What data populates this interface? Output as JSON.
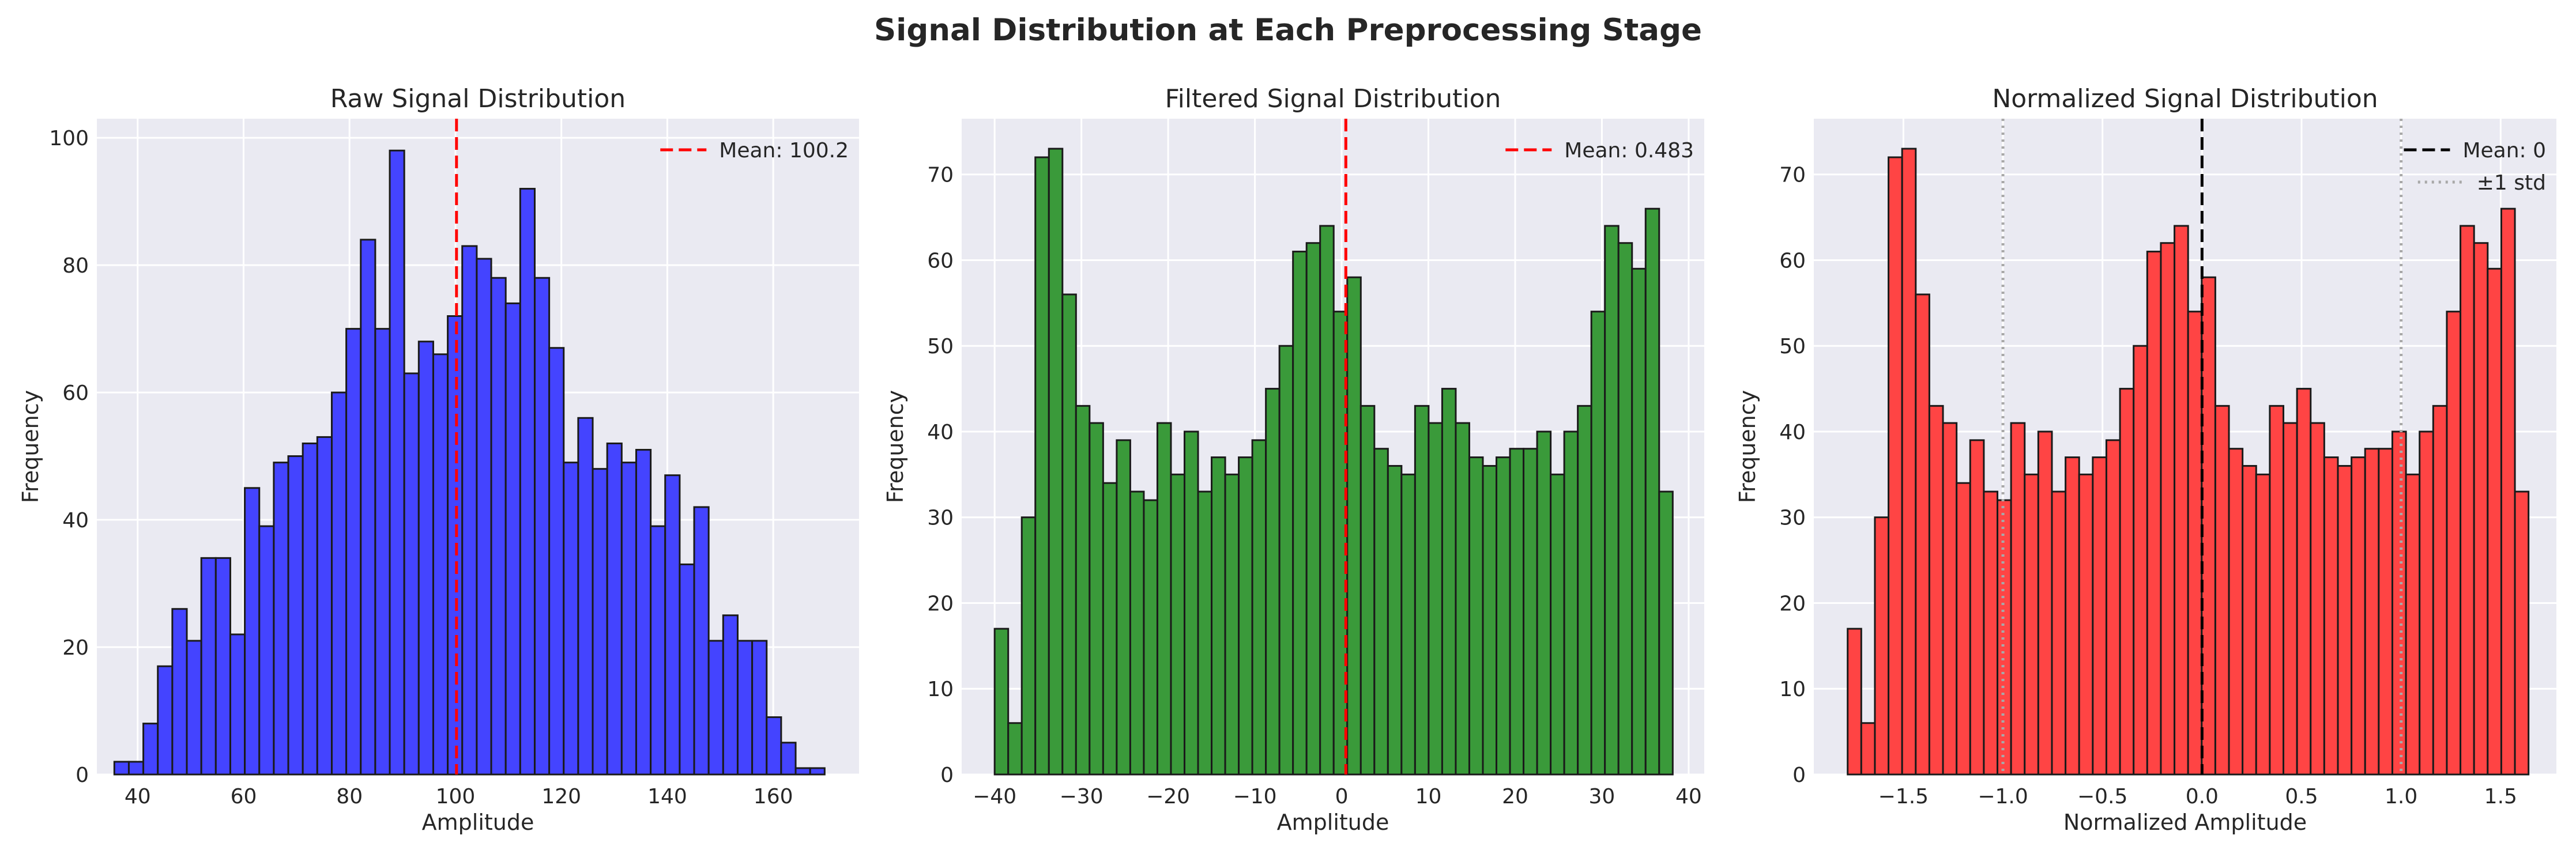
{
  "figure": {
    "title": "Signal Distribution at Each Preprocessing Stage"
  },
  "chart_data": [
    {
      "type": "bar",
      "title": "Raw Signal Distribution",
      "xlabel": "Amplitude",
      "ylabel": "Frequency",
      "xlim": [
        32.3,
        176.2
      ],
      "ylim": [
        0,
        103
      ],
      "xticks": [
        40,
        60,
        80,
        100,
        120,
        140,
        160
      ],
      "yticks": [
        0,
        20,
        40,
        60,
        80,
        100
      ],
      "xtick_decimals": 0,
      "bar_color": "#4444ff",
      "bin_start": 35.6,
      "bin_width": 2.7368,
      "values": [
        2,
        2,
        8,
        17,
        26,
        21,
        34,
        34,
        22,
        45,
        39,
        49,
        50,
        52,
        53,
        60,
        70,
        84,
        70,
        98,
        63,
        68,
        66,
        72,
        83,
        81,
        78,
        74,
        92,
        78,
        67,
        49,
        56,
        48,
        52,
        49,
        51,
        39,
        47,
        33,
        42,
        21,
        25,
        21,
        21,
        9,
        5,
        1,
        1,
        0
      ],
      "lines": [
        {
          "x": 100.2,
          "color": "#ff0000",
          "style": "dashed",
          "label": "Mean: 100.2"
        }
      ],
      "legend": "top-right",
      "grid": true
    },
    {
      "type": "bar",
      "title": "Filtered Signal Distribution",
      "xlabel": "Amplitude",
      "ylabel": "Frequency",
      "xlim": [
        -43.8,
        41.8
      ],
      "ylim": [
        0,
        76.5
      ],
      "xticks": [
        -40,
        -30,
        -20,
        -10,
        0,
        10,
        20,
        30,
        40
      ],
      "yticks": [
        0,
        10,
        20,
        30,
        40,
        50,
        60,
        70
      ],
      "xtick_decimals": 0,
      "bar_color": "#3a9a3a",
      "bin_start": -40.0,
      "bin_width": 1.5633,
      "values": [
        17,
        6,
        30,
        72,
        73,
        56,
        43,
        41,
        34,
        39,
        33,
        32,
        41,
        35,
        40,
        33,
        37,
        35,
        37,
        39,
        45,
        50,
        61,
        62,
        64,
        54,
        58,
        43,
        38,
        36,
        35,
        43,
        41,
        45,
        41,
        37,
        36,
        37,
        38,
        38,
        40,
        35,
        40,
        43,
        54,
        64,
        62,
        59,
        66,
        33
      ],
      "lines": [
        {
          "x": 0.483,
          "color": "#ff0000",
          "style": "dashed",
          "label": "Mean: 0.483"
        }
      ],
      "legend": "top-right",
      "grid": true
    },
    {
      "type": "bar",
      "title": "Normalized Signal Distribution",
      "xlabel": "Normalized Amplitude",
      "ylabel": "Frequency",
      "xlim": [
        -1.95,
        1.78
      ],
      "ylim": [
        0,
        76.5
      ],
      "xticks": [
        -1.5,
        -1.0,
        -0.5,
        0.0,
        0.5,
        1.0,
        1.5
      ],
      "yticks": [
        0,
        10,
        20,
        30,
        40,
        50,
        60,
        70
      ],
      "xtick_decimals": 1,
      "bar_color": "#ff4444",
      "bin_start": -1.78,
      "bin_width": 0.0684,
      "values": [
        17,
        6,
        30,
        72,
        73,
        56,
        43,
        41,
        34,
        39,
        33,
        32,
        41,
        35,
        40,
        33,
        37,
        35,
        37,
        39,
        45,
        50,
        61,
        62,
        64,
        54,
        58,
        43,
        38,
        36,
        35,
        43,
        41,
        45,
        41,
        37,
        36,
        37,
        38,
        38,
        40,
        35,
        40,
        43,
        54,
        64,
        62,
        59,
        66,
        33
      ],
      "lines": [
        {
          "x": 0,
          "color": "#000000",
          "style": "dashed",
          "label": "Mean: 0"
        },
        {
          "x": -1,
          "color": "#a8a8a8",
          "style": "dotted",
          "label": "±1 std"
        },
        {
          "x": 1,
          "color": "#a8a8a8",
          "style": "dotted",
          "label": ""
        }
      ],
      "legend": "top-right",
      "grid": true
    }
  ]
}
